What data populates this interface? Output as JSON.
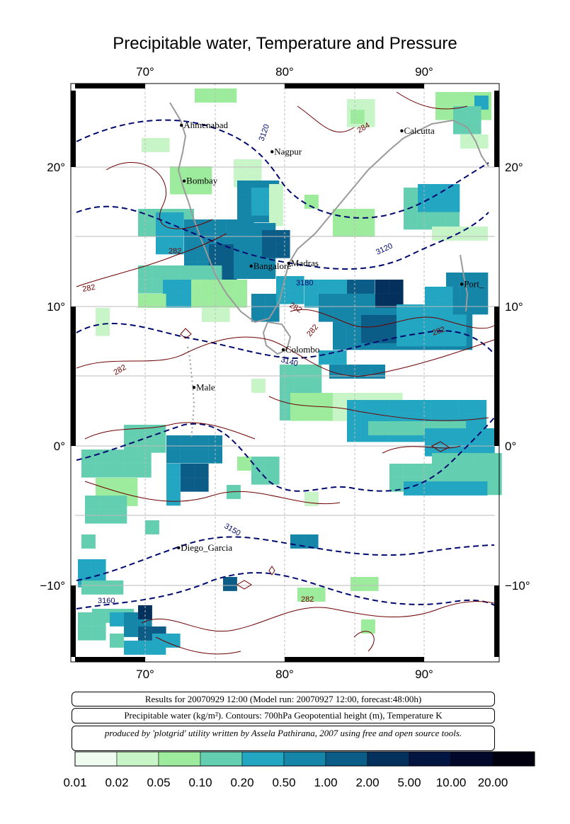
{
  "title": "Precipitable water, Temperature and Pressure",
  "lon_ticks": [
    "70°",
    "80°",
    "90°"
  ],
  "lat_ticks": [
    "20°",
    "10°",
    "0°",
    "−10°"
  ],
  "cities": [
    {
      "name": "Ahmenabad",
      "lon": 72.6,
      "lat": 23.0
    },
    {
      "name": "Nagpur",
      "lon": 79.1,
      "lat": 21.1
    },
    {
      "name": "Calcutta",
      "lon": 88.4,
      "lat": 22.6
    },
    {
      "name": "Bombay",
      "lon": 72.8,
      "lat": 19.0
    },
    {
      "name": "Bangalore",
      "lon": 77.6,
      "lat": 12.9
    },
    {
      "name": "Madras",
      "lon": 80.3,
      "lat": 13.1
    },
    {
      "name": "Port_",
      "lon": 92.7,
      "lat": 11.6
    },
    {
      "name": "Colombo",
      "lon": 79.9,
      "lat": 6.9
    },
    {
      "name": "Male",
      "lon": 73.5,
      "lat": 4.2
    },
    {
      "name": "Diego_Garcia",
      "lon": 72.4,
      "lat": -7.3
    }
  ],
  "contour_labels": {
    "geopotential": [
      "3120",
      "3120",
      "3180",
      "3140",
      "3150",
      "3160"
    ],
    "temperature": [
      "284",
      "282",
      "282",
      "282",
      "282",
      "282",
      "282",
      "282"
    ]
  },
  "captions": {
    "results": "Results for 20070929 12:00 (Model run: 20070927 12:00, forecast:48:00h)",
    "variables": "Precipitable water (kg/m²).  Contours: 700hPa Geopotential height (m), Temperature K",
    "credit": "produced by 'plotgrid' utility written by Assela Pathirana, 2007 using free and open source tools."
  },
  "colorbar": {
    "labels": [
      "0.01",
      "0.02",
      "0.05",
      "0.10",
      "0.20",
      "0.50",
      "1.00",
      "2.00",
      "5.00",
      "10.00",
      "20.00"
    ],
    "colors": [
      "#effbef",
      "#c8f5c8",
      "#9deb9d",
      "#64cfb0",
      "#22a6c2",
      "#1585a8",
      "#0b5c86",
      "#04305e",
      "#021540",
      "#01082a",
      "#000010"
    ]
  },
  "colors": {
    "land": "#9a9a9a",
    "geopotential_contour": "#000a6e",
    "temperature_contour": "#6e0000",
    "grid": "#bbbbbb"
  }
}
